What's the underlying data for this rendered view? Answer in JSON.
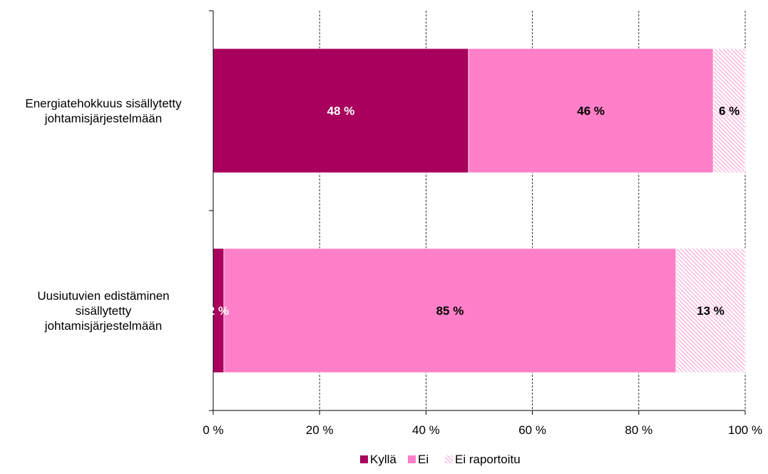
{
  "chart_data": {
    "type": "bar",
    "orientation": "horizontal",
    "stacked": "percent",
    "categories": [
      [
        "Energiatehokkuus sisällytetty",
        "johtamisjärjestelmään"
      ],
      [
        "Uusiutuvien edistäminen",
        "sisällytetty",
        "johtamisjärjestelmään"
      ]
    ],
    "series": [
      {
        "name": "Kyllä",
        "values": [
          48,
          2
        ],
        "labels": [
          "48 %",
          "2 %"
        ],
        "color": "#a8005c",
        "label_color": "#ffffff"
      },
      {
        "name": "Ei",
        "values": [
          46,
          85
        ],
        "labels": [
          "46 %",
          "85 %"
        ],
        "color": "#ff80c8",
        "label_color": "#000000"
      },
      {
        "name": "Ei raportoitu",
        "values": [
          6,
          13
        ],
        "labels": [
          "6 %",
          "13 %"
        ],
        "color": "#ff80c8",
        "pattern": "diagonal-hatch",
        "label_color": "#000000"
      }
    ],
    "xlim": [
      0,
      100
    ],
    "x_ticks": [
      0,
      20,
      40,
      60,
      80,
      100
    ],
    "x_tick_labels": [
      "0 %",
      "20 %",
      "40 %",
      "60 %",
      "80 %",
      "100 %"
    ],
    "grid": "vertical-dashed",
    "legend": "bottom",
    "title": "",
    "xlabel": "",
    "ylabel": ""
  }
}
